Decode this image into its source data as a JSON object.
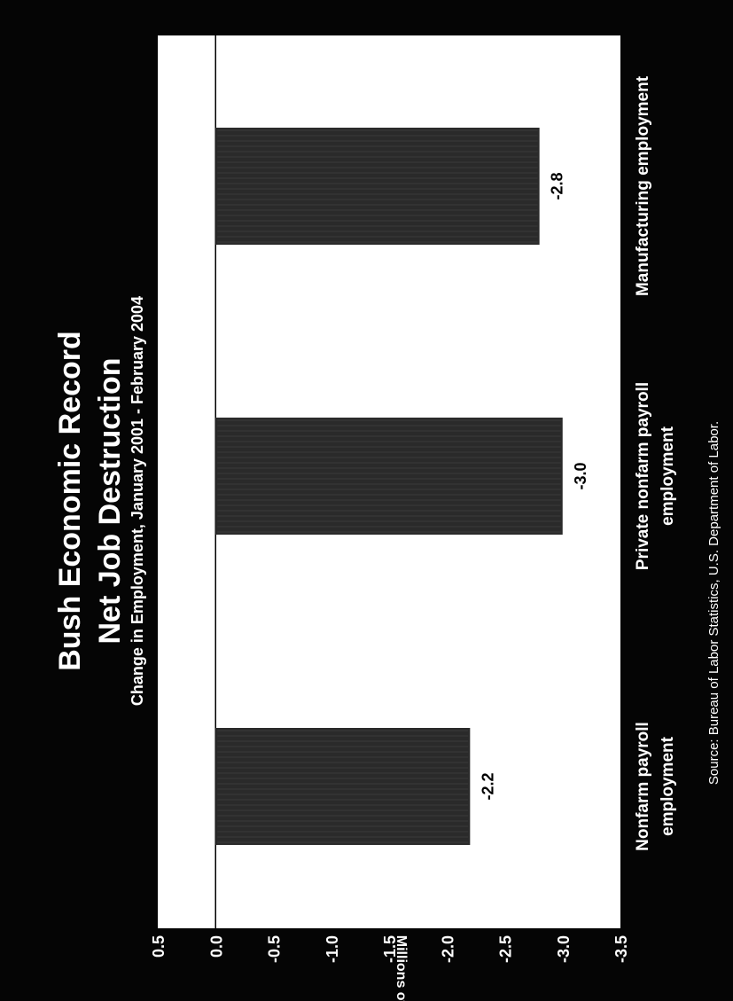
{
  "chart_data": {
    "type": "bar",
    "title": "Bush Economic Record",
    "subtitle": "Net Job Destruction",
    "caption": "Change in Employment, January 2001 - February 2004",
    "ylabel": "Millions of jobs",
    "source": "Source:  Bureau of Labor Statistics, U.S. Department of Labor.",
    "ylim": [
      -3.5,
      0.5
    ],
    "yticks": [
      0.5,
      0.0,
      -0.5,
      -1.0,
      -1.5,
      -2.0,
      -2.5,
      -3.0,
      -3.5
    ],
    "ytick_labels": [
      "0.5",
      "0.0",
      "-0.5",
      "-1.0",
      "-1.5",
      "-2.0",
      "-2.5",
      "-3.0",
      "-3.5"
    ],
    "categories": [
      [
        "Nonfarm payroll",
        "employment"
      ],
      [
        "Private nonfarm payroll",
        "employment"
      ],
      [
        "Manufacturing employment"
      ]
    ],
    "values": [
      -2.2,
      -3.0,
      -2.8
    ],
    "value_labels": [
      "-2.2",
      "-3.0",
      "-2.8"
    ],
    "orientation": "rotated 90° counter-clockwise (landscape page)",
    "colors": {
      "background": "#050505",
      "plot": "#ffffff",
      "bars": "#2a2a2a",
      "text": "#ffffff",
      "data_labels": "#000000"
    }
  }
}
